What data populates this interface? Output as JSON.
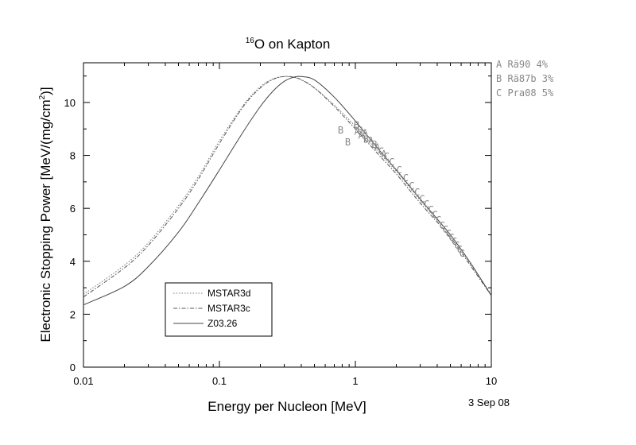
{
  "chart_data": {
    "type": "line",
    "title": "O on Kapton",
    "title_superscript": "16",
    "xlabel": "Energy per Nucleon [MeV]",
    "ylabel": "Electronic Stopping Power [MeV/(mg/cm",
    "ylabel_superscript": "2",
    "ylabel_tail": ")]",
    "x_scale": "log",
    "xlim": [
      0.01,
      10
    ],
    "ylim": [
      0,
      11.5
    ],
    "x_ticks": [
      0.01,
      0.1,
      1,
      10
    ],
    "x_tick_labels": [
      "0.01",
      "0.1",
      "1",
      "10"
    ],
    "y_ticks": [
      0,
      2,
      4,
      6,
      8,
      10
    ],
    "y_tick_labels": [
      "0",
      "2",
      "4",
      "6",
      "8",
      "10"
    ],
    "grid": false,
    "legend_position": "bottom-left",
    "date": "3 Sep 08",
    "series": [
      {
        "name": "MSTAR3d",
        "style": "dotted",
        "x": [
          0.01,
          0.02,
          0.03,
          0.05,
          0.07,
          0.1,
          0.15,
          0.2,
          0.25,
          0.3,
          0.35,
          0.4,
          0.5,
          0.7,
          1.0,
          1.5,
          2.0,
          3.0,
          5.0,
          7.0,
          10.0
        ],
        "y": [
          2.75,
          3.85,
          4.7,
          6.1,
          7.2,
          8.55,
          9.9,
          10.6,
          10.9,
          10.98,
          10.95,
          10.85,
          10.55,
          9.9,
          9.1,
          8.1,
          7.4,
          6.3,
          5.0,
          3.9,
          2.75
        ]
      },
      {
        "name": "MSTAR3c",
        "style": "dashdot",
        "x": [
          0.01,
          0.02,
          0.03,
          0.05,
          0.07,
          0.1,
          0.15,
          0.2,
          0.25,
          0.3,
          0.35,
          0.4,
          0.5,
          0.7,
          1.0,
          1.5,
          2.0,
          3.0,
          5.0,
          7.0,
          10.0
        ],
        "y": [
          2.65,
          3.75,
          4.6,
          6.0,
          7.1,
          8.45,
          9.85,
          10.55,
          10.88,
          10.98,
          10.96,
          10.86,
          10.55,
          9.85,
          9.0,
          8.0,
          7.3,
          6.2,
          4.9,
          3.85,
          2.7
        ]
      },
      {
        "name": "Z03.26",
        "style": "solid",
        "x": [
          0.01,
          0.02,
          0.03,
          0.05,
          0.07,
          0.1,
          0.15,
          0.2,
          0.25,
          0.3,
          0.35,
          0.4,
          0.5,
          0.7,
          1.0,
          1.5,
          2.0,
          3.0,
          5.0,
          7.0,
          10.0
        ],
        "y": [
          2.35,
          3.05,
          3.8,
          5.1,
          6.2,
          7.45,
          8.9,
          9.85,
          10.45,
          10.8,
          10.95,
          10.98,
          10.85,
          10.2,
          9.3,
          8.2,
          7.45,
          6.35,
          5.0,
          3.95,
          2.7
        ]
      }
    ],
    "points": [
      {
        "label": "B",
        "x": 0.78,
        "y": 8.95
      },
      {
        "label": "B",
        "x": 0.88,
        "y": 8.5
      },
      {
        "label": "B",
        "x": 1.02,
        "y": 9.15
      },
      {
        "label": "A",
        "x": 1.03,
        "y": 8.9
      },
      {
        "label": "B",
        "x": 1.08,
        "y": 8.95
      },
      {
        "label": "A",
        "x": 1.1,
        "y": 8.75
      },
      {
        "label": "A",
        "x": 1.18,
        "y": 8.85
      },
      {
        "label": "B",
        "x": 1.2,
        "y": 8.6
      },
      {
        "label": "A",
        "x": 1.3,
        "y": 8.55
      },
      {
        "label": "B",
        "x": 1.38,
        "y": 8.4
      },
      {
        "label": "A",
        "x": 1.45,
        "y": 8.3
      },
      {
        "label": "C",
        "x": 1.55,
        "y": 8.15
      },
      {
        "label": "A",
        "x": 1.62,
        "y": 8.05
      },
      {
        "label": "C",
        "x": 1.7,
        "y": 7.95
      },
      {
        "label": "C",
        "x": 1.85,
        "y": 7.75
      },
      {
        "label": "C",
        "x": 2.1,
        "y": 7.45
      },
      {
        "label": "C",
        "x": 2.35,
        "y": 7.15
      },
      {
        "label": "C",
        "x": 2.6,
        "y": 6.85
      },
      {
        "label": "C",
        "x": 2.85,
        "y": 6.6
      },
      {
        "label": "C",
        "x": 3.1,
        "y": 6.35
      },
      {
        "label": "C",
        "x": 3.35,
        "y": 6.15
      },
      {
        "label": "C",
        "x": 3.6,
        "y": 5.95
      },
      {
        "label": "C",
        "x": 3.85,
        "y": 5.75
      },
      {
        "label": "C",
        "x": 4.1,
        "y": 5.55
      },
      {
        "label": "C",
        "x": 4.35,
        "y": 5.35
      },
      {
        "label": "C",
        "x": 4.6,
        "y": 5.2
      },
      {
        "label": "C",
        "x": 4.85,
        "y": 5.05
      },
      {
        "label": "C",
        "x": 5.1,
        "y": 4.9
      },
      {
        "label": "C",
        "x": 5.35,
        "y": 4.75
      },
      {
        "label": "C",
        "x": 5.6,
        "y": 4.6
      },
      {
        "label": "C",
        "x": 5.85,
        "y": 4.45
      },
      {
        "label": "C",
        "x": 6.1,
        "y": 4.3
      }
    ],
    "references": [
      {
        "code": "A",
        "name": "Rä90",
        "err": "4%"
      },
      {
        "code": "B",
        "name": "Rä87b",
        "err": "3%"
      },
      {
        "code": "C",
        "name": "Pra08",
        "err": "5%"
      }
    ]
  }
}
